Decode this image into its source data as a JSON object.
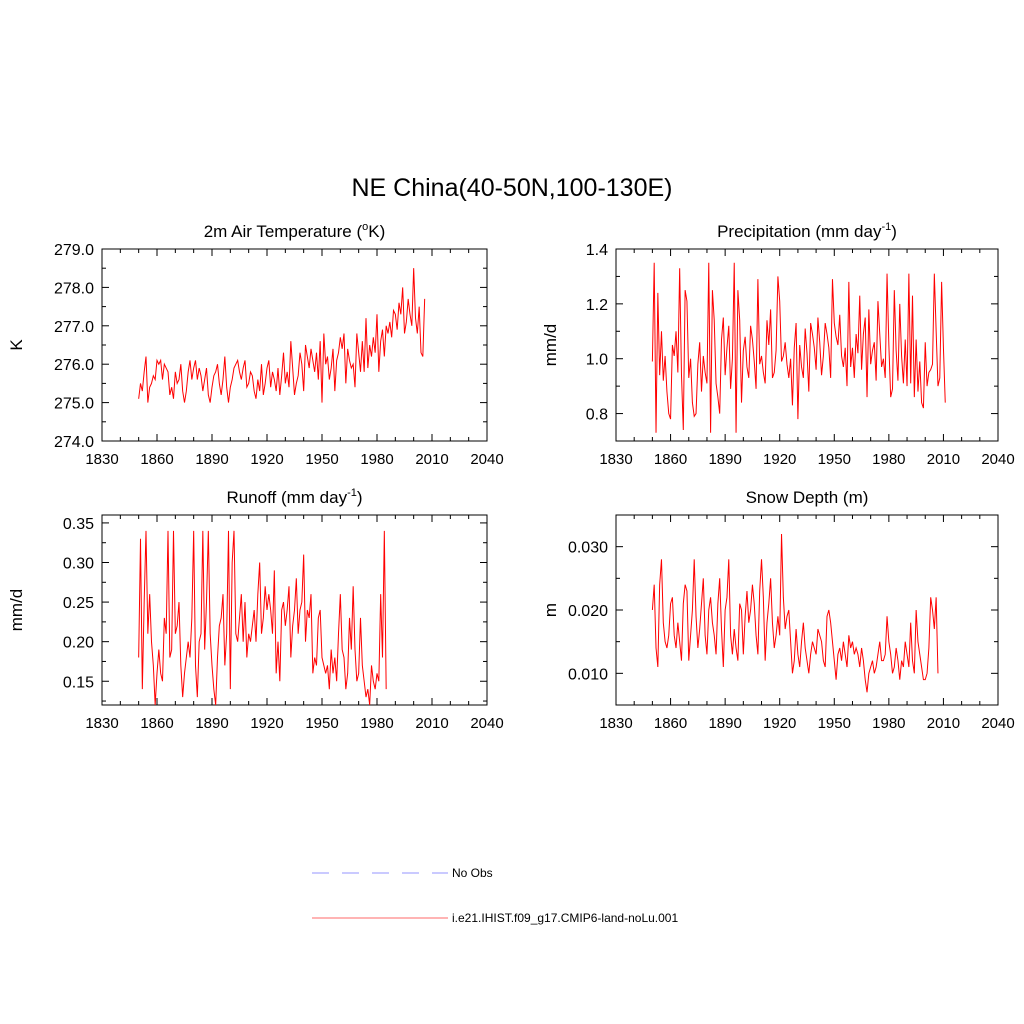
{
  "title": "NE China(40-50N,100-130E)",
  "legend": [
    {
      "label": "No Obs",
      "color": "#aaaaff",
      "dash": true
    },
    {
      "label": "i.e21.IHIST.f09_g17.CMIP6-land-noLu.001",
      "color": "#ff8888",
      "dash": false
    }
  ],
  "series_color": "#ff0000",
  "chart_data": [
    {
      "type": "line",
      "title": "2m Air Temperature (",
      "title_sup": "o",
      "title_tail": "K)",
      "ylabel": "K",
      "xlim": [
        1830,
        2040
      ],
      "xticks": [
        1830,
        1860,
        1890,
        1920,
        1950,
        1980,
        2010,
        2040
      ],
      "xtick_labels": [
        "1830",
        "1860",
        "1890",
        "1920",
        "1950",
        "1980",
        "2010",
        "2040"
      ],
      "ylim": [
        274.0,
        279.0
      ],
      "yticks": [
        274.0,
        275.0,
        276.0,
        277.0,
        278.0,
        279.0
      ],
      "ytick_labels": [
        "274.0",
        "275.0",
        "276.0",
        "277.0",
        "278.0",
        "279.0"
      ],
      "x_start": 1850,
      "series": [
        {
          "values": [
            275.1,
            275.5,
            275.3,
            275.8,
            276.2,
            275.0,
            275.4,
            275.5,
            275.7,
            275.6,
            276.1,
            276.0,
            276.1,
            275.6,
            276.0,
            275.9,
            275.8,
            275.2,
            275.4,
            275.1,
            275.8,
            275.5,
            275.6,
            276.0,
            275.3,
            275.0,
            275.3,
            275.8,
            276.1,
            275.6,
            275.9,
            276.1,
            275.6,
            275.9,
            275.7,
            275.3,
            275.6,
            275.9,
            275.2,
            275.0,
            275.4,
            275.7,
            275.8,
            276.0,
            275.5,
            275.2,
            275.6,
            276.2,
            275.4,
            275.0,
            275.4,
            275.6,
            275.9,
            276.0,
            276.1,
            275.8,
            275.6,
            275.9,
            276.1,
            275.4,
            275.5,
            275.8,
            275.7,
            275.3,
            275.1,
            275.6,
            275.3,
            276.0,
            275.2,
            275.5,
            275.9,
            276.1,
            275.4,
            275.8,
            275.6,
            275.3,
            275.9,
            275.2,
            275.7,
            276.3,
            275.5,
            275.8,
            275.4,
            276.6,
            275.9,
            275.2,
            275.5,
            275.7,
            276.3,
            276.0,
            275.3,
            276.5,
            276.2,
            275.9,
            276.4,
            276.1,
            275.8,
            276.3,
            275.6,
            276.6,
            275.0,
            276.8,
            276.0,
            276.2,
            275.6,
            275.9,
            276.4,
            275.3,
            276.1,
            276.3,
            276.7,
            276.4,
            276.8,
            275.5,
            276.4,
            276.1,
            275.9,
            276.0,
            275.4,
            276.8,
            276.3,
            275.8,
            276.6,
            275.8,
            277.2,
            275.9,
            276.5,
            276.2,
            276.7,
            276.3,
            277.3,
            275.8,
            276.6,
            276.9,
            276.2,
            277.0,
            276.8,
            277.1,
            276.7,
            277.4,
            277.3,
            276.9,
            277.6,
            277.3,
            278.0,
            276.8,
            277.1,
            277.7,
            277.3,
            277.0,
            278.5,
            277.2,
            276.8,
            277.5,
            276.3,
            276.2,
            277.7
          ]
        }
      ]
    },
    {
      "type": "line",
      "title": "Precipitation (mm day",
      "title_sup": "-1",
      "title_tail": ")",
      "ylabel": "mm/d",
      "xlim": [
        1830,
        2040
      ],
      "xticks": [
        1830,
        1860,
        1890,
        1920,
        1950,
        1980,
        2010,
        2040
      ],
      "xtick_labels": [
        "1830",
        "1860",
        "1890",
        "1920",
        "1950",
        "1980",
        "2010",
        "2040"
      ],
      "ylim": [
        0.7,
        1.4
      ],
      "yticks": [
        0.8,
        1.0,
        1.2,
        1.4
      ],
      "ytick_labels": [
        "0.8",
        "1.0",
        "1.2",
        "1.4"
      ],
      "x_start": 1850,
      "series": [
        {
          "values": [
            0.99,
            1.35,
            0.73,
            1.24,
            0.94,
            1.1,
            0.92,
            1.01,
            0.88,
            0.8,
            0.78,
            1.05,
            1.01,
            1.1,
            0.95,
            1.33,
            0.94,
            0.74,
            1.25,
            1.21,
            0.93,
            1.0,
            0.84,
            0.79,
            0.8,
            0.98,
            1.06,
            0.88,
            1.01,
            0.95,
            0.91,
            1.35,
            0.73,
            1.25,
            1.14,
            0.91,
            0.86,
            0.8,
            1.07,
            1.15,
            0.94,
            1.04,
            1.12,
            0.89,
            1.0,
            1.35,
            0.73,
            1.25,
            1.14,
            0.84,
            1.03,
            1.08,
            0.97,
            0.93,
            1.12,
            1.07,
            0.99,
            0.89,
            1.29,
            0.98,
            1.01,
            0.95,
            0.91,
            1.14,
            1.05,
            1.18,
            0.93,
            0.95,
            1.03,
            1.3,
            1.21,
            0.99,
            1.01,
            1.06,
            0.98,
            0.93,
            1.0,
            0.83,
            1.04,
            1.13,
            0.78,
            1.05,
            0.97,
            0.93,
            1.11,
            1.02,
            0.88,
            1.13,
            1.09,
            1.04,
            0.96,
            1.15,
            1.06,
            0.94,
            1.01,
            1.13,
            1.09,
            1.04,
            0.93,
            1.29,
            1.13,
            1.08,
            1.05,
            1.16,
            1.01,
            0.97,
            1.04,
            0.9,
            1.28,
            0.97,
            1.04,
            0.93,
            1.09,
            1.02,
            1.23,
            0.96,
            1.09,
            1.15,
            0.86,
            1.18,
            0.98,
            1.03,
            1.06,
            0.92,
            1.21,
            1.09,
            0.97,
            1.0,
            0.93,
            1.31,
            1.05,
            0.86,
            0.89,
            1.25,
            1.03,
            0.92,
            1.2,
            1.01,
            0.91,
            1.07,
            0.9,
            1.31,
            0.91,
            1.23,
            0.86,
            1.07,
            0.88,
            0.99,
            0.84,
            0.82,
            1.06,
            0.9,
            0.95,
            0.96,
            0.98,
            1.31,
            1.1,
            0.9,
            0.93,
            1.28,
            1.04,
            0.84
          ]
        }
      ]
    },
    {
      "type": "line",
      "title": "Runoff (mm day",
      "title_sup": "-1",
      "title_tail": ")",
      "ylabel": "mm/d",
      "xlim": [
        1830,
        2040
      ],
      "xticks": [
        1830,
        1860,
        1890,
        1920,
        1950,
        1980,
        2010,
        2040
      ],
      "xtick_labels": [
        "1830",
        "1860",
        "1890",
        "1920",
        "1950",
        "1980",
        "2010",
        "2040"
      ],
      "ylim": [
        0.12,
        0.36
      ],
      "yticks": [
        0.15,
        0.2,
        0.25,
        0.3,
        0.35
      ],
      "ytick_labels": [
        "0.15",
        "0.20",
        "0.25",
        "0.30",
        "0.35"
      ],
      "x_start": 1850,
      "series": [
        {
          "values": [
            0.18,
            0.33,
            0.14,
            0.25,
            0.34,
            0.21,
            0.26,
            0.2,
            0.17,
            0.12,
            0.16,
            0.19,
            0.16,
            0.15,
            0.23,
            0.21,
            0.34,
            0.18,
            0.19,
            0.34,
            0.21,
            0.22,
            0.25,
            0.17,
            0.13,
            0.16,
            0.18,
            0.2,
            0.18,
            0.23,
            0.34,
            0.17,
            0.13,
            0.2,
            0.21,
            0.34,
            0.19,
            0.25,
            0.34,
            0.21,
            0.17,
            0.14,
            0.12,
            0.18,
            0.22,
            0.23,
            0.26,
            0.17,
            0.21,
            0.34,
            0.14,
            0.3,
            0.34,
            0.21,
            0.2,
            0.23,
            0.26,
            0.2,
            0.25,
            0.18,
            0.21,
            0.2,
            0.22,
            0.24,
            0.2,
            0.26,
            0.3,
            0.21,
            0.23,
            0.27,
            0.24,
            0.26,
            0.24,
            0.21,
            0.29,
            0.16,
            0.2,
            0.15,
            0.24,
            0.25,
            0.22,
            0.24,
            0.27,
            0.18,
            0.22,
            0.24,
            0.28,
            0.21,
            0.24,
            0.25,
            0.31,
            0.2,
            0.24,
            0.23,
            0.26,
            0.16,
            0.18,
            0.17,
            0.23,
            0.24,
            0.18,
            0.17,
            0.16,
            0.17,
            0.14,
            0.19,
            0.16,
            0.18,
            0.15,
            0.21,
            0.26,
            0.19,
            0.18,
            0.14,
            0.16,
            0.23,
            0.19,
            0.27,
            0.19,
            0.15,
            0.16,
            0.23,
            0.17,
            0.15,
            0.13,
            0.14,
            0.12,
            0.17,
            0.15,
            0.14,
            0.16,
            0.15,
            0.26,
            0.18,
            0.34,
            0.14
          ]
        }
      ]
    },
    {
      "type": "line",
      "title": "Snow Depth (m)",
      "title_sup": "",
      "title_tail": "",
      "ylabel": "m",
      "xlim": [
        1830,
        2040
      ],
      "xticks": [
        1830,
        1860,
        1890,
        1920,
        1950,
        1980,
        2010,
        2040
      ],
      "xtick_labels": [
        "1830",
        "1860",
        "1890",
        "1920",
        "1950",
        "1980",
        "2010",
        "2040"
      ],
      "ylim": [
        0.005,
        0.035
      ],
      "yticks": [
        0.01,
        0.02,
        0.03
      ],
      "ytick_labels": [
        "0.010",
        "0.020",
        "0.030"
      ],
      "x_start": 1850,
      "series": [
        {
          "values": [
            0.02,
            0.024,
            0.014,
            0.011,
            0.024,
            0.028,
            0.018,
            0.015,
            0.014,
            0.016,
            0.021,
            0.022,
            0.016,
            0.014,
            0.018,
            0.015,
            0.012,
            0.021,
            0.024,
            0.023,
            0.012,
            0.016,
            0.02,
            0.028,
            0.019,
            0.014,
            0.017,
            0.021,
            0.025,
            0.016,
            0.013,
            0.02,
            0.022,
            0.018,
            0.016,
            0.013,
            0.021,
            0.025,
            0.017,
            0.011,
            0.02,
            0.022,
            0.028,
            0.016,
            0.013,
            0.017,
            0.014,
            0.012,
            0.021,
            0.02,
            0.013,
            0.019,
            0.023,
            0.018,
            0.02,
            0.024,
            0.021,
            0.016,
            0.013,
            0.023,
            0.028,
            0.022,
            0.012,
            0.018,
            0.021,
            0.025,
            0.018,
            0.014,
            0.016,
            0.019,
            0.016,
            0.032,
            0.022,
            0.017,
            0.019,
            0.02,
            0.015,
            0.01,
            0.012,
            0.017,
            0.013,
            0.011,
            0.015,
            0.018,
            0.014,
            0.012,
            0.01,
            0.013,
            0.015,
            0.014,
            0.013,
            0.017,
            0.016,
            0.015,
            0.012,
            0.011,
            0.019,
            0.02,
            0.018,
            0.015,
            0.012,
            0.009,
            0.013,
            0.014,
            0.012,
            0.015,
            0.013,
            0.011,
            0.016,
            0.014,
            0.015,
            0.013,
            0.014,
            0.013,
            0.011,
            0.014,
            0.012,
            0.009,
            0.007,
            0.01,
            0.011,
            0.012,
            0.01,
            0.011,
            0.013,
            0.015,
            0.012,
            0.012,
            0.013,
            0.019,
            0.015,
            0.013,
            0.01,
            0.011,
            0.014,
            0.012,
            0.009,
            0.012,
            0.011,
            0.015,
            0.013,
            0.011,
            0.018,
            0.012,
            0.01,
            0.02,
            0.015,
            0.013,
            0.011,
            0.009,
            0.009,
            0.01,
            0.014,
            0.022,
            0.02,
            0.017,
            0.022,
            0.01
          ]
        }
      ]
    }
  ]
}
